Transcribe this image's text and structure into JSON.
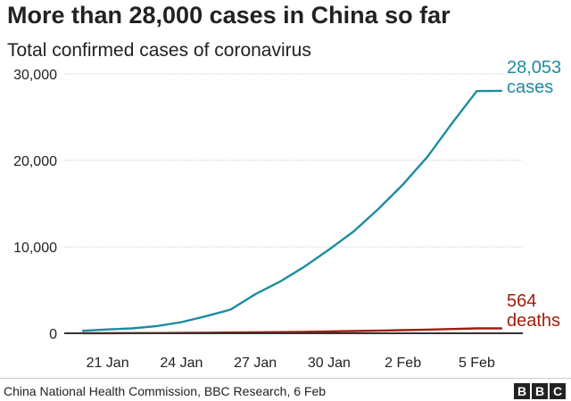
{
  "header": {
    "title": "More than 28,000 cases in China so far",
    "subtitle": "Total confirmed cases of coronavirus"
  },
  "footer": {
    "source": "China National Health Commission, BBC Research, 6 Feb",
    "logo_letters": [
      "B",
      "B",
      "C"
    ]
  },
  "chart_data": {
    "type": "line",
    "title": "More than 28,000 cases in China so far",
    "subtitle": "Total confirmed cases of coronavirus",
    "x_type": "date",
    "x": [
      "2020-01-20",
      "2020-01-21",
      "2020-01-22",
      "2020-01-23",
      "2020-01-24",
      "2020-01-25",
      "2020-01-26",
      "2020-01-27",
      "2020-01-28",
      "2020-01-29",
      "2020-01-30",
      "2020-01-31",
      "2020-02-01",
      "2020-02-02",
      "2020-02-03",
      "2020-02-04",
      "2020-02-05",
      "2020-02-06"
    ],
    "series": [
      {
        "name": "cases",
        "color": "#1d8ca1",
        "values": [
          291,
          440,
          571,
          830,
          1287,
          1975,
          2744,
          4515,
          5974,
          7711,
          9692,
          11791,
          14380,
          17205,
          20438,
          24324,
          28018,
          28053
        ],
        "end_label": [
          "28,053",
          "cases"
        ]
      },
      {
        "name": "deaths",
        "color": "#a01c0e",
        "values": [
          6,
          9,
          17,
          25,
          41,
          56,
          80,
          106,
          132,
          170,
          213,
          259,
          304,
          361,
          425,
          490,
          563,
          564
        ],
        "end_label": [
          "564",
          "deaths"
        ]
      }
    ],
    "xticks": [
      {
        "date": "2020-01-21",
        "label": "21 Jan"
      },
      {
        "date": "2020-01-24",
        "label": "24 Jan"
      },
      {
        "date": "2020-01-27",
        "label": "27 Jan"
      },
      {
        "date": "2020-01-30",
        "label": "30 Jan"
      },
      {
        "date": "2020-02-02",
        "label": "2 Feb"
      },
      {
        "date": "2020-02-05",
        "label": "5 Feb"
      }
    ],
    "yticks": [
      {
        "value": 0,
        "label": "0"
      },
      {
        "value": 10000,
        "label": "10,000"
      },
      {
        "value": 20000,
        "label": "20,000"
      },
      {
        "value": 30000,
        "label": "30,000"
      }
    ],
    "ylim": [
      0,
      30000
    ],
    "grid": "horizontal",
    "legend": "none"
  }
}
